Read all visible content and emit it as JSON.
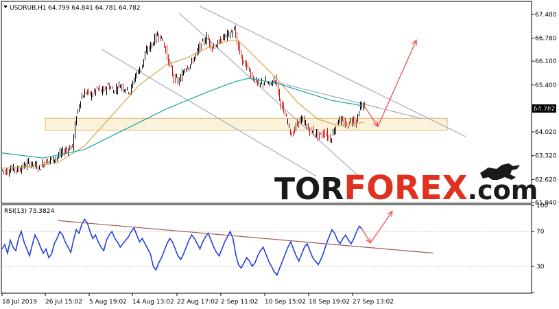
{
  "chart_data": [
    {
      "type": "line",
      "subtype": "candlestick",
      "symbol_header": "USDRUB,H1",
      "ohlc_header": "64.799 64.841 64.781 64.782",
      "current_price_label": "64.782",
      "ylim": [
        61.94,
        67.84
      ],
      "y_ticks": [
        "67.480",
        "66.780",
        "66.100",
        "65.400",
        "64.710",
        "64.020",
        "63.320",
        "62.620",
        "61.940"
      ],
      "x_tick_labels": [
        "18 Jul 2019",
        "26 Jul 15:02",
        "5 Aug 19:02",
        "14 Aug 13:02",
        "22 Aug 17:02",
        "2 Sep 11:02",
        "10 Sep 15:02",
        "18 Sep 19:02",
        "27 Sep 13:02"
      ],
      "price_path": [
        [
          0,
          62.9
        ],
        [
          8,
          62.85
        ],
        [
          16,
          62.95
        ],
        [
          24,
          62.9
        ],
        [
          32,
          63.0
        ],
        [
          40,
          63.1
        ],
        [
          48,
          63.05
        ],
        [
          56,
          62.95
        ],
        [
          64,
          63.15
        ],
        [
          72,
          63.2
        ],
        [
          80,
          63.25
        ],
        [
          88,
          63.4
        ],
        [
          96,
          63.5
        ],
        [
          104,
          63.6
        ],
        [
          110,
          64.5
        ],
        [
          116,
          65.0
        ],
        [
          124,
          65.2
        ],
        [
          132,
          65.1
        ],
        [
          140,
          65.3
        ],
        [
          148,
          65.2
        ],
        [
          156,
          65.4
        ],
        [
          164,
          65.2
        ],
        [
          172,
          65.4
        ],
        [
          180,
          65.3
        ],
        [
          188,
          65.2
        ],
        [
          196,
          65.7
        ],
        [
          204,
          65.9
        ],
        [
          212,
          66.4
        ],
        [
          220,
          66.6
        ],
        [
          228,
          66.9
        ],
        [
          236,
          66.7
        ],
        [
          244,
          66.1
        ],
        [
          252,
          65.6
        ],
        [
          260,
          65.5
        ],
        [
          268,
          65.9
        ],
        [
          276,
          66.0
        ],
        [
          284,
          66.3
        ],
        [
          292,
          66.6
        ],
        [
          300,
          66.8
        ],
        [
          308,
          66.5
        ],
        [
          316,
          66.6
        ],
        [
          324,
          66.8
        ],
        [
          332,
          66.9
        ],
        [
          340,
          67.0
        ],
        [
          346,
          66.5
        ],
        [
          352,
          66.1
        ],
        [
          360,
          65.9
        ],
        [
          368,
          65.6
        ],
        [
          376,
          65.4
        ],
        [
          384,
          65.5
        ],
        [
          392,
          65.4
        ],
        [
          400,
          65.6
        ],
        [
          406,
          65.0
        ],
        [
          412,
          64.6
        ],
        [
          418,
          64.3
        ],
        [
          424,
          63.9
        ],
        [
          430,
          64.2
        ],
        [
          436,
          64.4
        ],
        [
          442,
          64.3
        ],
        [
          448,
          64.1
        ],
        [
          456,
          64.0
        ],
        [
          464,
          63.9
        ],
        [
          472,
          64.0
        ],
        [
          480,
          63.8
        ],
        [
          486,
          64.1
        ],
        [
          492,
          64.4
        ],
        [
          498,
          64.3
        ],
        [
          504,
          64.2
        ],
        [
          512,
          64.4
        ],
        [
          518,
          64.3
        ],
        [
          524,
          64.8
        ],
        [
          528,
          64.78
        ]
      ],
      "ma_fast": [
        [
          0,
          62.95
        ],
        [
          40,
          63.0
        ],
        [
          80,
          63.1
        ],
        [
          120,
          63.6
        ],
        [
          160,
          64.5
        ],
        [
          200,
          65.4
        ],
        [
          240,
          66.0
        ],
        [
          270,
          66.2
        ],
        [
          300,
          66.5
        ],
        [
          330,
          66.7
        ],
        [
          345,
          66.7
        ],
        [
          370,
          66.2
        ],
        [
          400,
          65.6
        ],
        [
          430,
          64.9
        ],
        [
          460,
          64.4
        ],
        [
          490,
          64.2
        ],
        [
          528,
          64.3
        ]
      ],
      "ma_slow": [
        [
          0,
          63.4
        ],
        [
          60,
          63.25
        ],
        [
          120,
          63.5
        ],
        [
          180,
          64.1
        ],
        [
          240,
          64.7
        ],
        [
          300,
          65.2
        ],
        [
          340,
          65.5
        ],
        [
          360,
          65.6
        ],
        [
          400,
          65.45
        ],
        [
          440,
          65.2
        ],
        [
          480,
          64.95
        ],
        [
          528,
          64.78
        ]
      ],
      "support_zone": [
        64.07,
        64.42
      ],
      "trend_lines": [
        [
          [
            288,
            67.72
          ],
          [
            676,
            63.88
          ]
        ],
        [
          [
            145,
            66.45
          ],
          [
            458,
            62.72
          ]
        ],
        [
          [
            258,
            67.52
          ],
          [
            525,
            62.62
          ]
        ],
        [
          [
            392,
            65.52
          ],
          [
            612,
            64.41
          ]
        ]
      ],
      "forecast_arrows": [
        [
          [
            528,
            64.78
          ],
          [
            548,
            64.18
          ],
          [
            604,
            66.72
          ]
        ]
      ],
      "forecast_arrow_color": "#f04f4f"
    },
    {
      "type": "line",
      "indicator_header": "RSI(13) 73.3824",
      "ylim": [
        0,
        100
      ],
      "y_ticks": [
        "100",
        "70",
        "30",
        "0"
      ],
      "rsi_values": [
        50,
        55,
        45,
        60,
        52,
        48,
        62,
        70,
        58,
        50,
        42,
        55,
        66,
        60,
        52,
        45,
        50,
        40,
        44,
        56,
        62,
        70,
        66,
        58,
        52,
        46,
        60,
        72,
        68,
        78,
        84,
        80,
        70,
        62,
        66,
        58,
        52,
        48,
        60,
        66,
        70,
        62,
        58,
        52,
        56,
        60,
        64,
        70,
        74,
        66,
        58,
        62,
        56,
        50,
        44,
        30,
        26,
        34,
        40,
        48,
        56,
        62,
        58,
        50,
        42,
        38,
        44,
        52,
        60,
        66,
        62,
        56,
        50,
        58,
        64,
        68,
        60,
        52,
        46,
        42,
        50,
        58,
        64,
        70,
        62,
        44,
        32,
        28,
        34,
        40,
        36,
        30,
        34,
        42,
        48,
        52,
        44,
        36,
        30,
        24,
        20,
        28,
        36,
        44,
        52,
        58,
        50,
        42,
        36,
        44,
        52,
        56,
        48,
        40,
        36,
        32,
        38,
        46,
        56,
        64,
        72,
        68,
        60,
        56,
        62,
        66,
        60,
        56,
        62,
        70,
        76,
        73
      ],
      "trend_line": [
        [
          84,
          82.5
        ],
        [
          632,
          45.2
        ]
      ],
      "forecast_arrows": [
        [
          [
            528,
            72.5
          ],
          [
            540,
            57.0
          ],
          [
            572,
            93.0
          ]
        ]
      ],
      "forecast_arrow_color": "#f04f4f"
    }
  ],
  "watermark": {
    "part1": "TOR",
    "part2": "FOREX",
    "part3": ".com",
    "color1": "#1a1a1a",
    "color2": "#e03020"
  },
  "colors": {
    "bull": "#000000",
    "bear": "#c81919",
    "ma_fast": "#d4a642",
    "ma_slow": "#17a2a0",
    "rsi": "#1f3fdc",
    "trend": "#a0acbd",
    "rsi_trend": "#a05a5a",
    "zone_fill": "#f7e7c0",
    "zone_stroke": "#e0b060"
  }
}
